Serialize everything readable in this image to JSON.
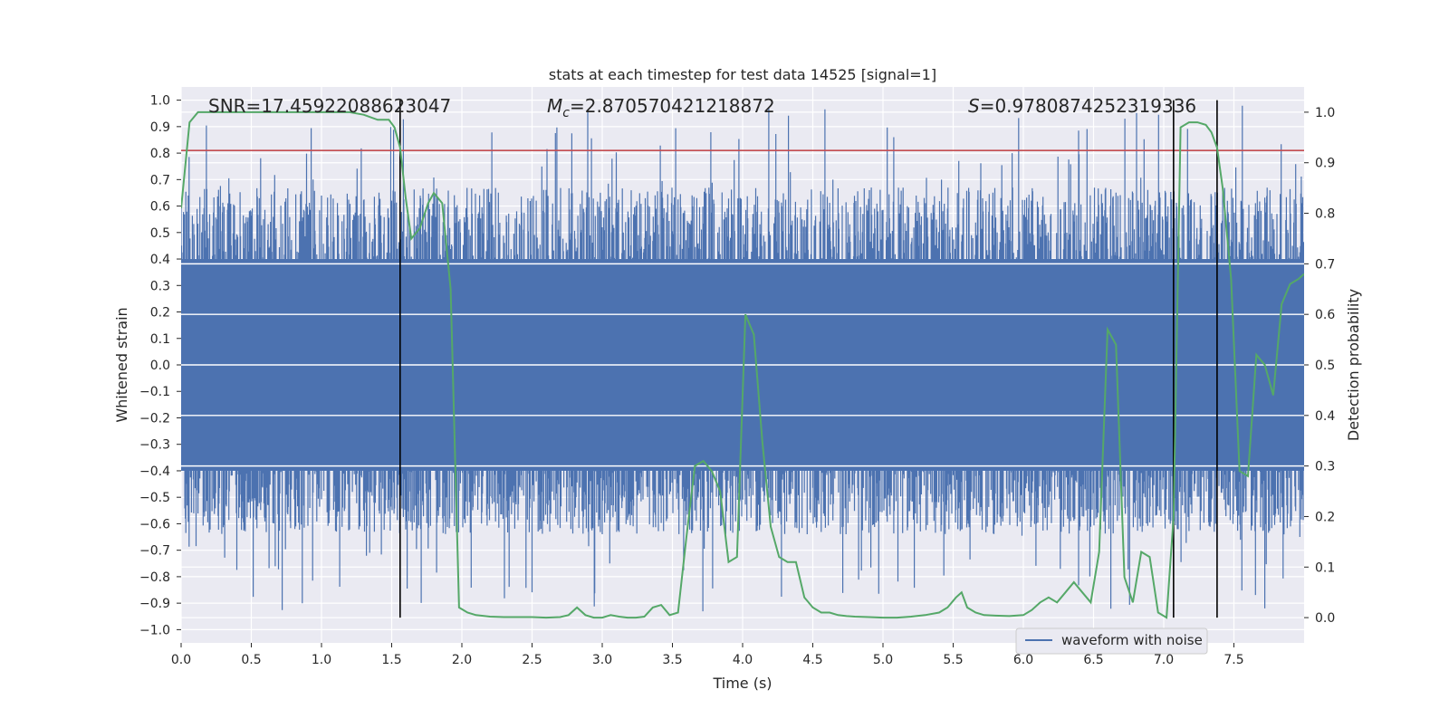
{
  "chart_data": {
    "type": "line",
    "title": "stats at each timestep for test data 14525 [signal=1]",
    "xlabel": "Time (s)",
    "ylabel_left": "Whitened strain",
    "ylabel_right": "Detection probability",
    "xlim": [
      0.0,
      8.0
    ],
    "ylim_left": [
      -1.05,
      1.05
    ],
    "ylim_right": [
      -0.05,
      1.05
    ],
    "x_ticks": [
      "0.0",
      "0.5",
      "1.0",
      "1.5",
      "2.0",
      "2.5",
      "3.0",
      "3.5",
      "4.0",
      "4.5",
      "5.0",
      "5.5",
      "6.0",
      "6.5",
      "7.0",
      "7.5"
    ],
    "y_ticks_left": [
      "−1.0",
      "−0.9",
      "−0.8",
      "−0.7",
      "−0.6",
      "−0.5",
      "−0.4",
      "−0.3",
      "−0.2",
      "−0.1",
      "0.0",
      "0.1",
      "0.2",
      "0.3",
      "0.4",
      "0.5",
      "0.6",
      "0.7",
      "0.8",
      "0.9",
      "1.0"
    ],
    "y_ticks_right": [
      "0.0",
      "0.1",
      "0.2",
      "0.3",
      "0.4",
      "0.5",
      "0.6",
      "0.7",
      "0.8",
      "0.9",
      "1.0"
    ],
    "annotations": {
      "snr": "SNR=17.45922088623047",
      "mc_symbol": "M",
      "mc_sub": "c",
      "mc_value": "=2.870570421218872",
      "s_symbol": "S",
      "s_value": "=0.9780874252319336"
    },
    "legend": {
      "label": "waveform with noise",
      "placement": "lower-right"
    },
    "threshold_left": 0.81,
    "vertical_lines_x": [
      1.56,
      7.07,
      7.38
    ],
    "colors": {
      "waveform": "#4c72b0",
      "probability": "#55a868",
      "threshold": "#c44e52",
      "vlines": "#000000",
      "plot_bg": "#eaeaf2",
      "grid": "#ffffff"
    },
    "waveform": {
      "name": "waveform with noise",
      "seed": 14525,
      "samples": 2400,
      "envelope_upper": 0.4,
      "envelope_lower": -0.4,
      "noise_max": 1.0,
      "noise_min": -0.94
    },
    "probability": {
      "name": "detection probability",
      "x": [
        0.0,
        0.06,
        0.12,
        0.2,
        0.3,
        0.4,
        0.5,
        0.6,
        0.7,
        0.8,
        0.9,
        1.0,
        1.1,
        1.2,
        1.3,
        1.4,
        1.48,
        1.52,
        1.56,
        1.6,
        1.64,
        1.7,
        1.76,
        1.8,
        1.86,
        1.92,
        1.98,
        2.04,
        2.1,
        2.2,
        2.3,
        2.4,
        2.5,
        2.6,
        2.7,
        2.76,
        2.82,
        2.88,
        2.94,
        3.0,
        3.06,
        3.12,
        3.18,
        3.24,
        3.3,
        3.36,
        3.42,
        3.48,
        3.54,
        3.6,
        3.66,
        3.72,
        3.78,
        3.84,
        3.9,
        3.96,
        4.02,
        4.08,
        4.14,
        4.2,
        4.26,
        4.32,
        4.38,
        4.44,
        4.5,
        4.56,
        4.62,
        4.68,
        4.74,
        4.8,
        4.9,
        5.0,
        5.1,
        5.2,
        5.3,
        5.4,
        5.46,
        5.52,
        5.56,
        5.6,
        5.66,
        5.72,
        5.8,
        5.9,
        6.0,
        6.06,
        6.12,
        6.18,
        6.24,
        6.3,
        6.36,
        6.42,
        6.48,
        6.54,
        6.6,
        6.66,
        6.72,
        6.78,
        6.84,
        6.9,
        6.96,
        7.02,
        7.07,
        7.12,
        7.18,
        7.24,
        7.3,
        7.34,
        7.38,
        7.42,
        7.48,
        7.54,
        7.6,
        7.66,
        7.72,
        7.78,
        7.84,
        7.9,
        7.96,
        8.0
      ],
      "y": [
        0.81,
        0.98,
        1.0,
        1.0,
        1.0,
        1.0,
        1.0,
        1.0,
        1.0,
        1.0,
        1.0,
        1.0,
        1.0,
        1.0,
        0.995,
        0.985,
        0.985,
        0.97,
        0.93,
        0.83,
        0.75,
        0.77,
        0.82,
        0.84,
        0.82,
        0.65,
        0.02,
        0.01,
        0.005,
        0.002,
        0.001,
        0.001,
        0.001,
        0.0,
        0.001,
        0.005,
        0.02,
        0.005,
        0.0,
        0.0,
        0.005,
        0.002,
        0.0,
        0.0,
        0.002,
        0.02,
        0.025,
        0.005,
        0.01,
        0.16,
        0.3,
        0.31,
        0.29,
        0.25,
        0.11,
        0.12,
        0.6,
        0.56,
        0.35,
        0.18,
        0.12,
        0.11,
        0.11,
        0.04,
        0.02,
        0.01,
        0.01,
        0.005,
        0.003,
        0.002,
        0.001,
        0.0,
        0.0,
        0.002,
        0.005,
        0.01,
        0.02,
        0.04,
        0.05,
        0.02,
        0.01,
        0.005,
        0.004,
        0.003,
        0.005,
        0.015,
        0.03,
        0.04,
        0.03,
        0.05,
        0.07,
        0.05,
        0.03,
        0.13,
        0.57,
        0.54,
        0.08,
        0.03,
        0.13,
        0.12,
        0.01,
        0.0,
        0.2,
        0.97,
        0.98,
        0.98,
        0.975,
        0.96,
        0.93,
        0.85,
        0.67,
        0.29,
        0.28,
        0.52,
        0.5,
        0.44,
        0.62,
        0.66,
        0.67,
        0.68
      ]
    }
  }
}
